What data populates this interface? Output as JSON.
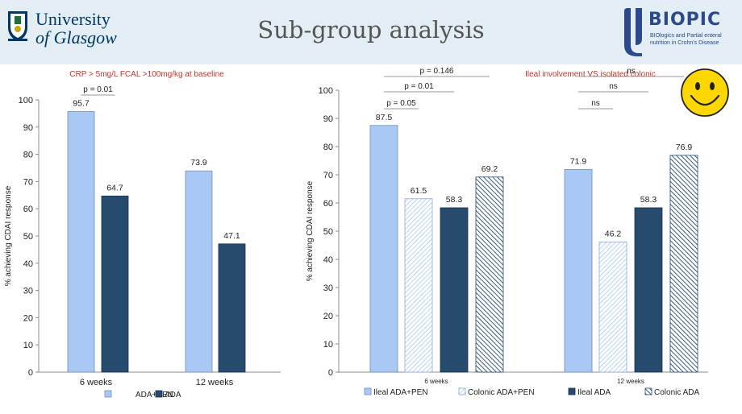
{
  "header": {
    "title": "Sub-group analysis",
    "university_line1": "University",
    "university_line2": "of Glasgow",
    "biopic_name": "BIOPIC",
    "biopic_tagline1": "BIOlogics and Partial enteral",
    "biopic_tagline2": "nutrition in Crohn's Disease"
  },
  "colors": {
    "light_blue": "#a9c8f3",
    "dark_blue": "#264b6e",
    "title_red": "#c0392b",
    "smiley_yellow": "#ffd700"
  },
  "chart_data": [
    {
      "type": "bar",
      "title": "CRP > 5mg/L FCAL >100mg/kg at baseline",
      "xlabel": "",
      "ylabel": "% achieving CDAI response",
      "ylim": [
        0,
        100
      ],
      "yticks": [
        "0",
        "10",
        "20",
        "30",
        "40",
        "50",
        "60",
        "70",
        "80",
        "90",
        "100"
      ],
      "categories": [
        "6 weeks",
        "12 weeks"
      ],
      "series": [
        {
          "name": "ADA+PEN",
          "values": [
            95.7,
            73.9
          ],
          "labels": [
            "95.7",
            "73.9"
          ]
        },
        {
          "name": "ADA",
          "values": [
            64.7,
            47.1
          ],
          "labels": [
            "64.7",
            "47.1"
          ]
        }
      ],
      "annotations": [
        {
          "text": "p = 0.01",
          "category": 0,
          "from_series": 0,
          "to_series": 1
        }
      ],
      "legend": "bottom"
    },
    {
      "type": "bar",
      "title": "Ileal involvement VS isolated colonic",
      "xlabel": "",
      "ylabel": "% achieving CDAI response",
      "ylim": [
        0,
        100
      ],
      "yticks": [
        "0",
        "10",
        "20",
        "30",
        "40",
        "50",
        "60",
        "70",
        "80",
        "90",
        "100"
      ],
      "categories": [
        "6 weeks",
        "12 weeks"
      ],
      "series": [
        {
          "name": "Ileal ADA+PEN",
          "values": [
            87.5,
            71.9
          ],
          "labels": [
            "87.5",
            "71.9"
          ]
        },
        {
          "name": "Colonic ADA+PEN",
          "values": [
            61.5,
            46.2
          ],
          "labels": [
            "61.5",
            "46.2"
          ]
        },
        {
          "name": "Ileal ADA",
          "values": [
            58.3,
            58.3
          ],
          "labels": [
            "58.3",
            "58.3"
          ]
        },
        {
          "name": "Colonic ADA",
          "values": [
            69.2,
            76.9
          ],
          "labels": [
            "69.2",
            "76.9"
          ]
        }
      ],
      "annotations": [
        {
          "text": "p = 0.05",
          "category": 0,
          "from_series": 0,
          "to_series": 1
        },
        {
          "text": "p = 0.01",
          "category": 0,
          "from_series": 0,
          "to_series": 2
        },
        {
          "text": "p = 0.146",
          "category": 0,
          "from_series": 0,
          "to_series": 3
        },
        {
          "text": "ns",
          "category": 1,
          "from_series": 0,
          "to_series": 1
        },
        {
          "text": "ns",
          "category": 1,
          "from_series": 0,
          "to_series": 2
        },
        {
          "text": "ns",
          "category": 1,
          "from_series": 0,
          "to_series": 3
        }
      ],
      "legend": "bottom"
    }
  ]
}
